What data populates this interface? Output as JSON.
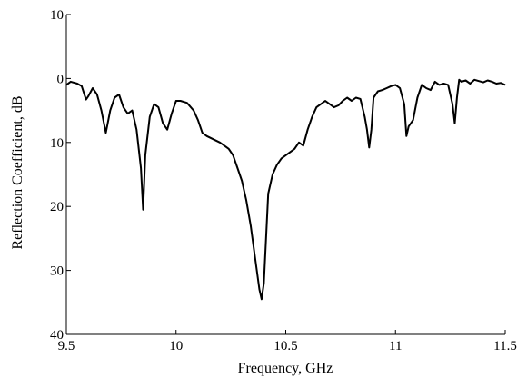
{
  "chart_data": {
    "type": "line",
    "title": "",
    "xlabel": "Frequency, GHz",
    "ylabel": "Reflection Coefficient, dB",
    "xlim": [
      9.5,
      11.5
    ],
    "ylim": [
      -40,
      10
    ],
    "grid": false,
    "x_ticks": [
      {
        "value": 9.5,
        "label": "9.5"
      },
      {
        "value": 10,
        "label": "10"
      },
      {
        "value": 10.5,
        "label": "10.5"
      },
      {
        "value": 11,
        "label": "11"
      },
      {
        "value": 11.5,
        "label": "11.5"
      }
    ],
    "y_ticks": [
      {
        "value": 10,
        "label": "10"
      },
      {
        "value": 0,
        "label": "0"
      },
      {
        "value": -10,
        "label": "10"
      },
      {
        "value": -20,
        "label": "20"
      },
      {
        "value": -30,
        "label": "30"
      },
      {
        "value": -40,
        "label": "40"
      }
    ],
    "series": [
      {
        "x": [
          9.5,
          9.52,
          9.55,
          9.57,
          9.59,
          9.6,
          9.62,
          9.64,
          9.66,
          9.68,
          9.7,
          9.72,
          9.74,
          9.76,
          9.78,
          9.8,
          9.82,
          9.84,
          9.85,
          9.86,
          9.88,
          9.9,
          9.92,
          9.94,
          9.96,
          9.98,
          10.0,
          10.02,
          10.05,
          10.08,
          10.1,
          10.12,
          10.14,
          10.17,
          10.2,
          10.22,
          10.24,
          10.26,
          10.28,
          10.3,
          10.32,
          10.34,
          10.36,
          10.38,
          10.39,
          10.4,
          10.41,
          10.42,
          10.44,
          10.46,
          10.48,
          10.5,
          10.52,
          10.54,
          10.56,
          10.58,
          10.6,
          10.62,
          10.64,
          10.66,
          10.68,
          10.7,
          10.72,
          10.74,
          10.76,
          10.78,
          10.8,
          10.82,
          10.84,
          10.86,
          10.87,
          10.88,
          10.89,
          10.9,
          10.92,
          10.94,
          10.96,
          10.98,
          11.0,
          11.02,
          11.04,
          11.05,
          11.06,
          11.08,
          11.1,
          11.12,
          11.14,
          11.16,
          11.18,
          11.2,
          11.22,
          11.24,
          11.26,
          11.27,
          11.28,
          11.29,
          11.3,
          11.32,
          11.34,
          11.36,
          11.38,
          11.4,
          11.42,
          11.44,
          11.46,
          11.48,
          11.5
        ],
        "y": [
          -1.0,
          -0.5,
          -0.8,
          -1.2,
          -3.3,
          -2.8,
          -1.5,
          -2.5,
          -5.0,
          -8.5,
          -5.0,
          -3.0,
          -2.5,
          -4.5,
          -5.5,
          -5.0,
          -8.0,
          -14.0,
          -20.5,
          -12.0,
          -6.0,
          -4.0,
          -4.5,
          -7.0,
          -8.0,
          -5.5,
          -3.5,
          -3.5,
          -3.8,
          -5.0,
          -6.5,
          -8.5,
          -9.0,
          -9.5,
          -10.0,
          -10.5,
          -11.0,
          -12.0,
          -14.0,
          -16.0,
          -19.0,
          -23.0,
          -28.0,
          -33.0,
          -34.5,
          -32.0,
          -25.0,
          -18.0,
          -15.0,
          -13.5,
          -12.5,
          -12.0,
          -11.5,
          -11.0,
          -10.0,
          -10.5,
          -8.0,
          -6.0,
          -4.5,
          -4.0,
          -3.5,
          -4.0,
          -4.5,
          -4.2,
          -3.5,
          -3.0,
          -3.5,
          -3.0,
          -3.2,
          -6.0,
          -8.0,
          -10.8,
          -8.0,
          -3.0,
          -2.0,
          -1.8,
          -1.5,
          -1.2,
          -1.0,
          -1.5,
          -4.0,
          -9.0,
          -7.5,
          -6.5,
          -3.0,
          -1.0,
          -1.5,
          -1.8,
          -0.5,
          -1.0,
          -0.8,
          -1.0,
          -4.0,
          -7.0,
          -3.0,
          -0.2,
          -0.5,
          -0.3,
          -0.8,
          -0.2,
          -0.4,
          -0.6,
          -0.3,
          -0.5,
          -0.8,
          -0.7,
          -1.0
        ]
      }
    ]
  }
}
